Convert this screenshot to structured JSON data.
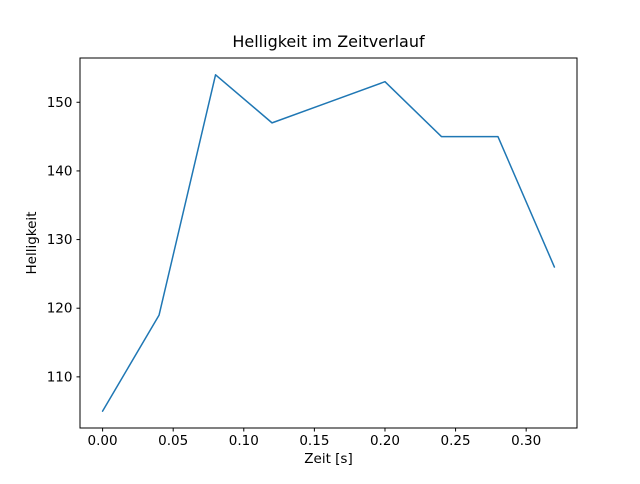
{
  "figure": {
    "background": "#ffffff",
    "frame_color": "#000000",
    "text_color": "#000000"
  },
  "chart_data": {
    "type": "line",
    "title": "Helligkeit im Zeitverlauf",
    "xlabel": "Zeit [s]",
    "ylabel": "Helligkeit",
    "x": [
      0.0,
      0.04,
      0.08,
      0.12,
      0.16,
      0.2,
      0.24,
      0.28,
      0.32
    ],
    "y": [
      105,
      119,
      154,
      147,
      150,
      153,
      145,
      145,
      126
    ],
    "series": [
      {
        "name": "Helligkeit",
        "values": [
          105,
          119,
          154,
          147,
          150,
          153,
          145,
          145,
          126
        ]
      }
    ],
    "xlim": [
      -0.016,
      0.336
    ],
    "ylim": [
      102.55,
      156.45
    ],
    "xticks": [
      0.0,
      0.05,
      0.1,
      0.15,
      0.2,
      0.25,
      0.3
    ],
    "xtick_labels": [
      "0.00",
      "0.05",
      "0.10",
      "0.15",
      "0.20",
      "0.25",
      "0.30"
    ],
    "yticks": [
      110,
      120,
      130,
      140,
      150
    ],
    "ytick_labels": [
      "110",
      "120",
      "130",
      "140",
      "150"
    ],
    "line_color": "#1f77b4",
    "line_width": 1.5,
    "markers": false,
    "grid": false,
    "legend": null
  }
}
